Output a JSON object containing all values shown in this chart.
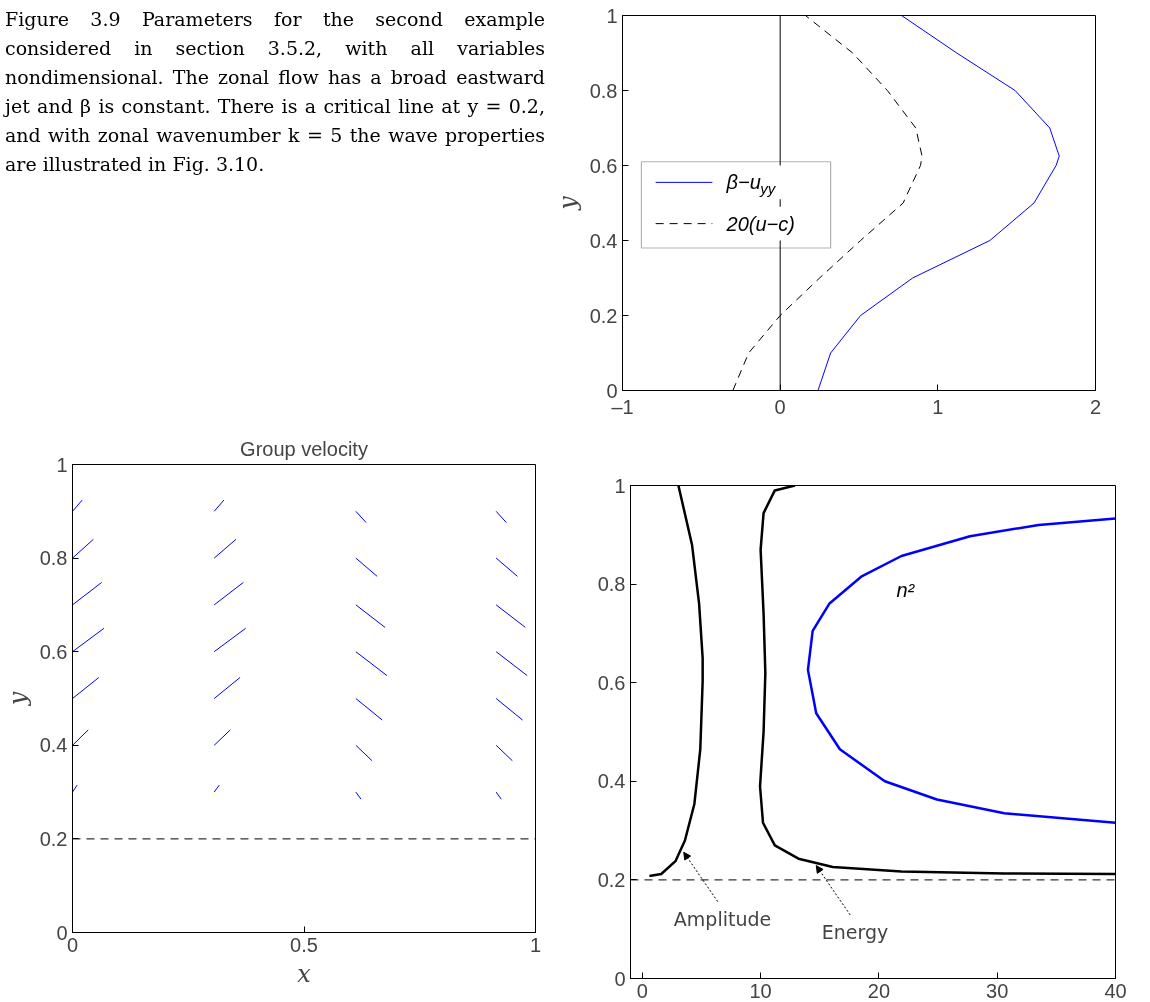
{
  "chart_data": [
    {
      "type": "line",
      "xlim": [
        -1,
        2
      ],
      "ylim": [
        0,
        1
      ],
      "xticks": [
        {
          "value": -1,
          "label": "–1"
        },
        0,
        1,
        2
      ],
      "yticks": [
        0,
        0.2,
        0.4,
        0.6,
        0.8,
        1
      ],
      "ylabel": "y",
      "legend": "left",
      "grid": false,
      "annotations": [
        "Figure 3.9 Parameters for the second example considered in section 3.5.2, with all variables nondimensional. The zonal flow has a broad eastward jet and β is constant. There is a critical line at y = 0.2, and with zonal wavenumber k = 5 the wave properties are illustrated in Fig. 3.10."
      ],
      "ref_lines": [
        {
          "axis": "x",
          "value": 0,
          "label": null,
          "color": "#000000",
          "line_style": "solid"
        }
      ],
      "series": [
        {
          "name": "β−u$_{yy}$",
          "color": "#0000ff",
          "line_style": "solid",
          "x": [
            0.24,
            0.32,
            0.51,
            0.84,
            1.33,
            1.61,
            1.75,
            1.77,
            1.71,
            1.49,
            1.12,
            0.77
          ],
          "values": [
            0,
            0.1,
            0.2,
            0.3,
            0.4,
            0.5,
            0.6,
            0.625,
            0.7,
            0.8,
            0.9,
            1
          ]
        },
        {
          "name": "20(u−c)",
          "color": "#000000",
          "line_style": "dashed",
          "x": [
            -0.3,
            -0.2,
            0.0,
            0.25,
            0.51,
            0.78,
            0.89,
            0.9,
            0.86,
            0.68,
            0.46,
            0.16
          ],
          "values": [
            0,
            0.1,
            0.2,
            0.3,
            0.4,
            0.5,
            0.6,
            0.625,
            0.7,
            0.8,
            0.9,
            1
          ]
        }
      ]
    },
    {
      "type": "line",
      "title": "Group velocity",
      "xlabel": "x",
      "ylabel": "y",
      "xlim": [
        0,
        1
      ],
      "ylim": [
        0,
        1
      ],
      "xticks": [
        0,
        0.5,
        1
      ],
      "yticks": [
        0,
        0.2,
        0.4,
        0.6,
        0.8,
        1
      ],
      "grid": false,
      "legend": false,
      "ref_lines": [
        {
          "axis": "y",
          "value": 0.2,
          "label": null,
          "color": "#000000",
          "line_style": "dashed"
        }
      ],
      "series": [
        {
          "color": "#0000ff",
          "x": [
            0,
            0.01
          ],
          "values": [
            0.3,
            0.315
          ]
        },
        {
          "color": "#0000ff",
          "x": [
            0,
            0.034
          ],
          "values": [
            0.4,
            0.433
          ]
        },
        {
          "color": "#0000ff",
          "x": [
            0,
            0.057
          ],
          "values": [
            0.5,
            0.545
          ]
        },
        {
          "color": "#0000ff",
          "x": [
            0,
            0.068
          ],
          "values": [
            0.6,
            0.65
          ]
        },
        {
          "color": "#0000ff",
          "x": [
            0,
            0.063
          ],
          "values": [
            0.7,
            0.748
          ]
        },
        {
          "color": "#0000ff",
          "x": [
            0,
            0.045
          ],
          "values": [
            0.8,
            0.84
          ]
        },
        {
          "color": "#0000ff",
          "x": [
            0,
            0.021
          ],
          "values": [
            0.9,
            0.924
          ]
        },
        {
          "color": "#0000ff",
          "x": [
            0.306,
            0.317
          ],
          "values": [
            0.3,
            0.315
          ]
        },
        {
          "color": "#0000ff",
          "x": [
            0.306,
            0.341
          ],
          "values": [
            0.4,
            0.433
          ]
        },
        {
          "color": "#0000ff",
          "x": [
            0.306,
            0.362
          ],
          "values": [
            0.5,
            0.545
          ]
        },
        {
          "color": "#0000ff",
          "x": [
            0.306,
            0.374
          ],
          "values": [
            0.6,
            0.65
          ]
        },
        {
          "color": "#0000ff",
          "x": [
            0.306,
            0.369
          ],
          "values": [
            0.7,
            0.748
          ]
        },
        {
          "color": "#0000ff",
          "x": [
            0.306,
            0.353
          ],
          "values": [
            0.8,
            0.84
          ]
        },
        {
          "color": "#0000ff",
          "x": [
            0.306,
            0.327
          ],
          "values": [
            0.9,
            0.924
          ]
        },
        {
          "color": "#0000ff",
          "x": [
            0.612,
            0.623
          ],
          "values": [
            0.3,
            0.285
          ]
        },
        {
          "color": "#0000ff",
          "x": [
            0.612,
            0.647
          ],
          "values": [
            0.4,
            0.367
          ]
        },
        {
          "color": "#0000ff",
          "x": [
            0.612,
            0.669
          ],
          "values": [
            0.5,
            0.454
          ]
        },
        {
          "color": "#0000ff",
          "x": [
            0.612,
            0.679
          ],
          "values": [
            0.6,
            0.549
          ]
        },
        {
          "color": "#0000ff",
          "x": [
            0.612,
            0.675
          ],
          "values": [
            0.7,
            0.652
          ]
        },
        {
          "color": "#0000ff",
          "x": [
            0.612,
            0.658
          ],
          "values": [
            0.8,
            0.761
          ]
        },
        {
          "color": "#0000ff",
          "x": [
            0.612,
            0.634
          ],
          "values": [
            0.9,
            0.876
          ]
        },
        {
          "color": "#0000ff",
          "x": [
            0.915,
            0.926
          ],
          "values": [
            0.3,
            0.285
          ]
        },
        {
          "color": "#0000ff",
          "x": [
            0.915,
            0.95
          ],
          "values": [
            0.4,
            0.367
          ]
        },
        {
          "color": "#0000ff",
          "x": [
            0.915,
            0.972
          ],
          "values": [
            0.5,
            0.454
          ]
        },
        {
          "color": "#0000ff",
          "x": [
            0.915,
            0.982
          ],
          "values": [
            0.6,
            0.549
          ]
        },
        {
          "color": "#0000ff",
          "x": [
            0.915,
            0.978
          ],
          "values": [
            0.7,
            0.652
          ]
        },
        {
          "color": "#0000ff",
          "x": [
            0.915,
            0.961
          ],
          "values": [
            0.8,
            0.761
          ]
        },
        {
          "color": "#0000ff",
          "x": [
            0.915,
            0.937
          ],
          "values": [
            0.9,
            0.876
          ]
        }
      ]
    },
    {
      "type": "line",
      "xlim": [
        -1,
        40
      ],
      "ylim": [
        0,
        1
      ],
      "xticks": [
        0,
        10,
        20,
        30,
        40
      ],
      "yticks": [
        0,
        0.2,
        0.4,
        0.6,
        0.8,
        1
      ],
      "grid": false,
      "legend": false,
      "ref_lines": [
        {
          "axis": "y",
          "value": 0.2,
          "label": null,
          "color": "#000000",
          "line_style": "dashed"
        }
      ],
      "annotations": [
        {
          "text": "Amplitude",
          "x": 3.5,
          "y": 0.256
        },
        {
          "text": "Energy",
          "x": 14.7,
          "y": 0.229
        }
      ],
      "series": [
        {
          "color": "#000000",
          "x": [
            0.6,
            1.6,
            2.8,
            3.6,
            4.4,
            4.9,
            5.1,
            5.1,
            4.8,
            4.2,
            3.05
          ],
          "values": [
            0.208,
            0.212,
            0.238,
            0.28,
            0.354,
            0.465,
            0.603,
            0.65,
            0.76,
            0.88,
            1.0
          ]
        },
        {
          "color": "#000000",
          "x": [
            12.9,
            11.2,
            10.25,
            10.0,
            10.25,
            10.4,
            10.25,
            9.95,
            10.2,
            11.2,
            13.2,
            16.1,
            21.9,
            30.6,
            40
          ],
          "values": [
            1.0,
            0.99,
            0.944,
            0.87,
            0.74,
            0.62,
            0.5,
            0.39,
            0.316,
            0.27,
            0.243,
            0.226,
            0.217,
            0.213,
            0.212
          ]
        },
        {
          "name": "n²",
          "color": "#0000ff",
          "x": [
            40,
            33.5,
            27.7,
            21.9,
            18.5,
            15.8,
            14.4,
            14.0,
            14.7,
            16.7,
            20.5,
            24.9,
            30.6,
            40
          ],
          "values": [
            0.933,
            0.92,
            0.897,
            0.857,
            0.815,
            0.76,
            0.705,
            0.626,
            0.538,
            0.465,
            0.4,
            0.363,
            0.335,
            0.316
          ]
        }
      ]
    }
  ]
}
